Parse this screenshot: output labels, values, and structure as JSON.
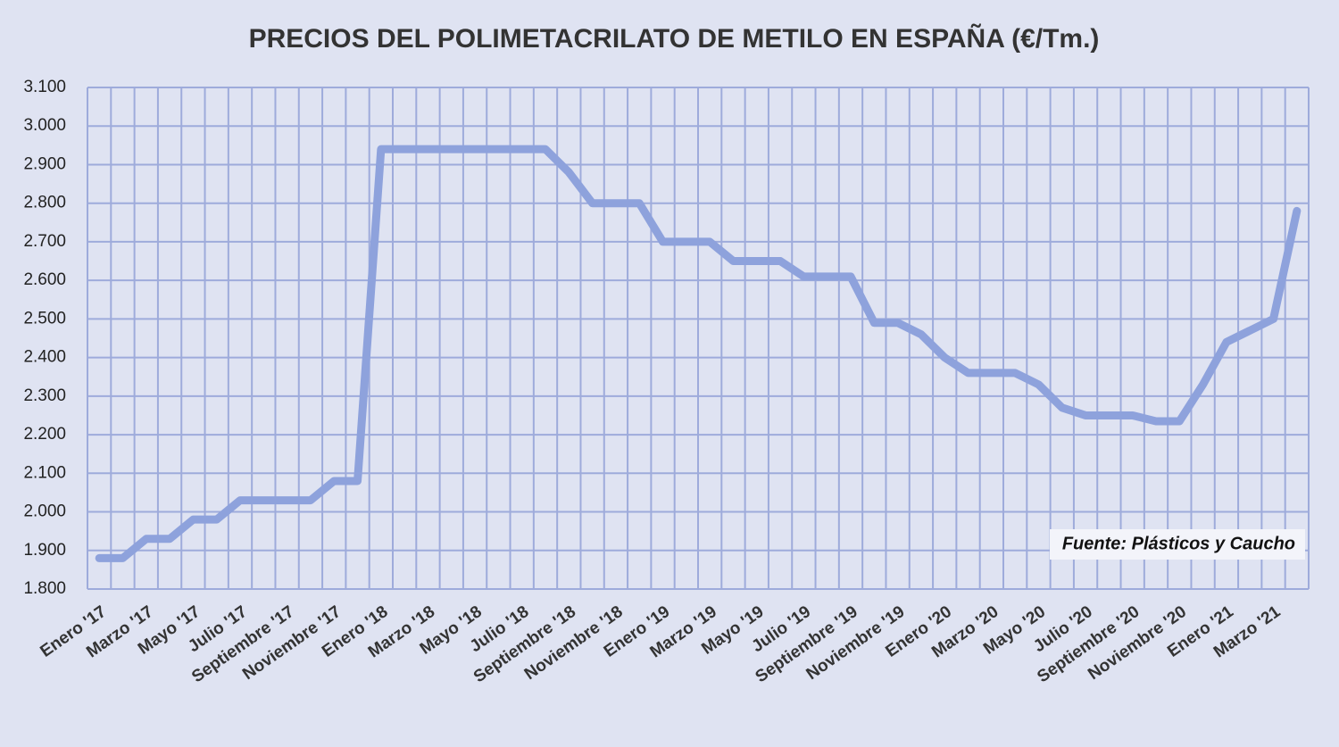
{
  "chart_data": {
    "type": "line",
    "title": "PRECIOS DEL POLIMETACRILATO DE METILO EN ESPAÑA (€/Tm.)",
    "annotation": "Fuente: Plásticos y Caucho",
    "categories": [
      "Enero '17",
      null,
      "Marzo '17",
      null,
      "Mayo '17",
      null,
      "Julio '17",
      null,
      "Septiembre '17",
      null,
      "Noviembre '17",
      null,
      "Enero '18",
      null,
      "Marzo '18",
      null,
      "Mayo '18",
      null,
      "Julio '18",
      null,
      "Septiembre '18",
      null,
      "Noviembre '18",
      null,
      "Enero '19",
      null,
      "Marzo '19",
      null,
      "Mayo '19",
      null,
      "Julio '19",
      null,
      "Septiembre '19",
      null,
      "Noviembre '19",
      null,
      "Enero '20",
      null,
      "Marzo '20",
      null,
      "Mayo '20",
      null,
      "Julio '20",
      null,
      "Septiembre '20",
      null,
      "Noviembre '20",
      null,
      "Enero '21",
      null,
      "Marzo '21",
      null
    ],
    "series": [
      {
        "color": "#8ea2dc",
        "values": [
          1880,
          1880,
          1930,
          1930,
          1980,
          1980,
          2030,
          2030,
          2030,
          2030,
          2080,
          2080,
          2940,
          2940,
          2940,
          2940,
          2940,
          2940,
          2940,
          2940,
          2880,
          2800,
          2800,
          2800,
          2700,
          2700,
          2700,
          2650,
          2650,
          2650,
          2610,
          2610,
          2610,
          2490,
          2490,
          2460,
          2400,
          2360,
          2360,
          2360,
          2330,
          2270,
          2250,
          2250,
          2250,
          2235,
          2235,
          2330,
          2440,
          2470,
          2500,
          2780
        ]
      }
    ],
    "ylim": [
      1800,
      3100
    ],
    "yticks": [
      {
        "value": 1800,
        "label": "1.800"
      },
      {
        "value": 1900,
        "label": "1.900"
      },
      {
        "value": 2000,
        "label": "2.000"
      },
      {
        "value": 2100,
        "label": "2.100"
      },
      {
        "value": 2200,
        "label": "2.200"
      },
      {
        "value": 2300,
        "label": "2.300"
      },
      {
        "value": 2400,
        "label": "2.400"
      },
      {
        "value": 2500,
        "label": "2.500"
      },
      {
        "value": 2600,
        "label": "2.600"
      },
      {
        "value": 2700,
        "label": "2.700"
      },
      {
        "value": 2800,
        "label": "2.800"
      },
      {
        "value": 2900,
        "label": "2.900"
      },
      {
        "value": 3000,
        "label": "3.000"
      },
      {
        "value": 3100,
        "label": "3.100"
      }
    ],
    "grid": true
  }
}
